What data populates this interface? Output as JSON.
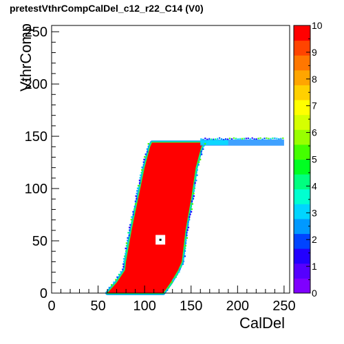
{
  "chart_data": {
    "type": "heatmap",
    "title": "pretestVthrCompCalDel_c12_r22_C14 (V0)",
    "xlabel": "CalDel",
    "ylabel": "VthrComp",
    "xlim": [
      0,
      256
    ],
    "ylim": [
      0,
      256
    ],
    "xticks": [
      "0",
      "50",
      "100",
      "150",
      "200",
      "250"
    ],
    "yticks": [
      "0",
      "50",
      "100",
      "150",
      "200",
      "250"
    ],
    "zlim": [
      0,
      10
    ],
    "zticks": [
      "0",
      "1",
      "2",
      "3",
      "4",
      "5",
      "6",
      "7",
      "8",
      "9",
      "10"
    ],
    "palette": [
      "#7f00ff",
      "#5500ff",
      "#2200ff",
      "#0044ff",
      "#0099ff",
      "#00d5ff",
      "#00ffd0",
      "#00ff7f",
      "#00ff22",
      "#44ff00",
      "#99ff00",
      "#d5ff00",
      "#ffff00",
      "#ffd000",
      "#ffa500",
      "#ff7700",
      "#ff4400",
      "#ff0000"
    ],
    "saturated_region": [
      {
        "vthrcomp": 0,
        "caldel_min": 60,
        "caldel_max": 120
      },
      {
        "vthrcomp": 10,
        "caldel_min": 70,
        "caldel_max": 128
      },
      {
        "vthrcomp": 22,
        "caldel_min": 79,
        "caldel_max": 136
      },
      {
        "vthrcomp": 30,
        "caldel_min": 80,
        "caldel_max": 140
      },
      {
        "vthrcomp": 60,
        "caldel_min": 86,
        "caldel_max": 144
      },
      {
        "vthrcomp": 90,
        "caldel_min": 93,
        "caldel_max": 150
      },
      {
        "vthrcomp": 120,
        "caldel_min": 100,
        "caldel_max": 155
      },
      {
        "vthrcomp": 140,
        "caldel_min": 106,
        "caldel_max": 161
      },
      {
        "vthrcomp": 144,
        "caldel_min": 108,
        "caldel_max": 165
      }
    ],
    "top_plateau": {
      "vthrcomp": [
        141,
        147
      ],
      "caldel_min": 160,
      "caldel_max": 250,
      "level": 3
    },
    "empty_bin": {
      "caldel": 117,
      "vthrcomp": 51
    }
  }
}
